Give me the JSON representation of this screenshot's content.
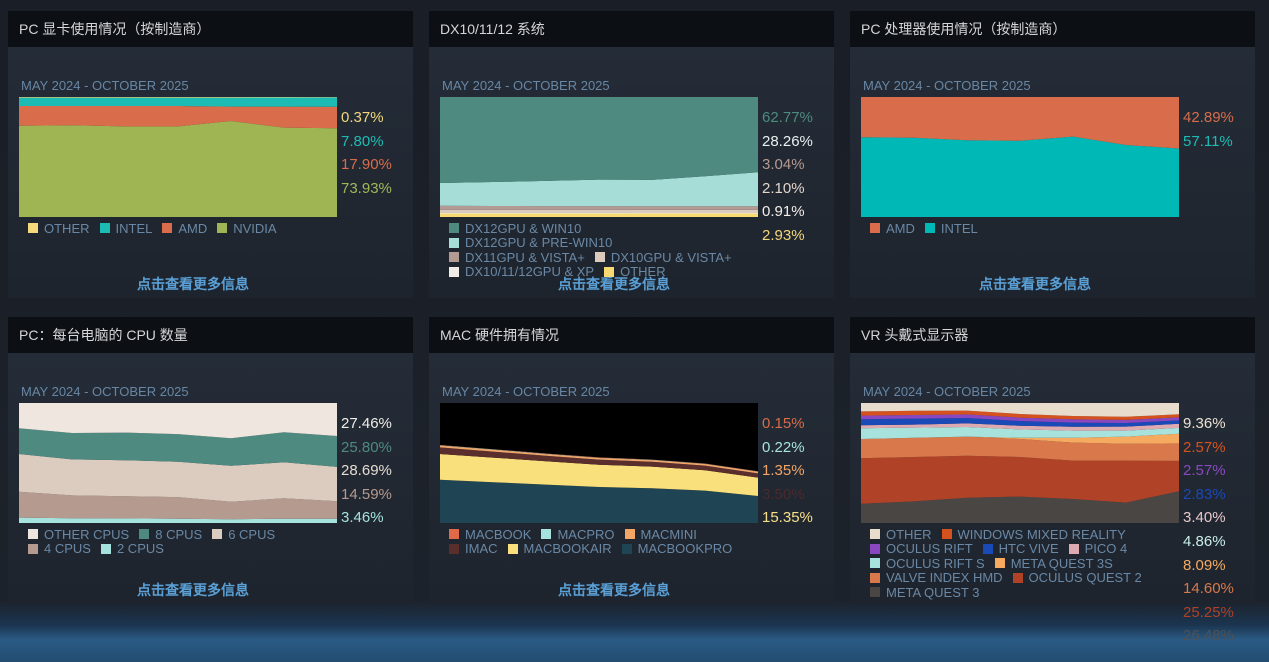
{
  "link_label": "点击查看更多信息",
  "panels": [
    {
      "title": "PC 显卡使用情况（按制造商）",
      "date_range": "MAY 2024 - OCTOBER 2025",
      "labels": [
        {
          "text": "0.37%",
          "color": "#f3d77c"
        },
        {
          "text": "7.80%",
          "color": "#1cbcb5"
        },
        {
          "text": "17.90%",
          "color": "#d96c4a"
        },
        {
          "text": "73.93%",
          "color": "#a2b758"
        }
      ]
    },
    {
      "title": "DX10/11/12 系统",
      "date_range": "MAY 2024 - OCTOBER 2025",
      "labels": [
        {
          "text": "62.77%",
          "color": "#4e8a80"
        },
        {
          "text": "28.26%",
          "color": "#e6f2f0"
        },
        {
          "text": "3.04%",
          "color": "#b59a90"
        },
        {
          "text": "2.10%",
          "color": "#e2d6cc"
        },
        {
          "text": "0.91%",
          "color": "#f2eeea"
        },
        {
          "text": "2.93%",
          "color": "#f3d77c"
        }
      ]
    },
    {
      "title": "PC 处理器使用情况（按制造商）",
      "date_range": "MAY 2024 - OCTOBER 2025",
      "labels": [
        {
          "text": "42.89%",
          "color": "#d96c4a"
        },
        {
          "text": "57.11%",
          "color": "#1cbcb5"
        }
      ]
    },
    {
      "title": "PC：每台电脑的 CPU 数量",
      "date_range": "MAY 2024 - OCTOBER 2025",
      "labels": [
        {
          "text": "27.46%",
          "color": "#f2ede8"
        },
        {
          "text": "25.80%",
          "color": "#4e8a80"
        },
        {
          "text": "28.69%",
          "color": "#e6dcd2"
        },
        {
          "text": "14.59%",
          "color": "#b59a90"
        },
        {
          "text": "3.46%",
          "color": "#a6e3de"
        }
      ]
    },
    {
      "title": "MAC 硬件拥有情况",
      "date_range": "MAY 2024 - OCTOBER 2025",
      "labels": [
        {
          "text": "0.15%",
          "color": "#d96c4a"
        },
        {
          "text": "0.22%",
          "color": "#a6e3de"
        },
        {
          "text": "1.35%",
          "color": "#f3a566"
        },
        {
          "text": "3.50%",
          "color": "#4a2a2c"
        },
        {
          "text": "15.35%",
          "color": "#f6e08a"
        }
      ]
    },
    {
      "title": "VR 头戴式显示器",
      "date_range": "MAY 2024 - OCTOBER 2025",
      "labels": [
        {
          "text": "9.36%",
          "color": "#ece2d4"
        },
        {
          "text": "2.57%",
          "color": "#d5521e"
        },
        {
          "text": "2.57%",
          "color": "#8a48c0"
        },
        {
          "text": "2.83%",
          "color": "#1a49b8"
        },
        {
          "text": "3.40%",
          "color": "#e8c8cc"
        },
        {
          "text": "4.86%",
          "color": "#c8eeea"
        },
        {
          "text": "8.09%",
          "color": "#f5aa60"
        },
        {
          "text": "14.60%",
          "color": "#d9784a"
        },
        {
          "text": "25.25%",
          "color": "#b04228"
        },
        {
          "text": "26.48%",
          "color": "#4f5154"
        }
      ]
    }
  ],
  "chart_data": [
    {
      "type": "area",
      "stacked": true,
      "x": [
        "2024-05",
        "2024-08",
        "2024-11",
        "2025-01",
        "2025-02",
        "2025-04",
        "2025-10"
      ],
      "ylim": [
        0,
        100
      ],
      "legend": [
        "OTHER",
        "INTEL",
        "AMD",
        "NVIDIA"
      ],
      "series": [
        {
          "name": "NVIDIA",
          "color": "#9fb554",
          "values": [
            76,
            76.5,
            75.5,
            75.5,
            80,
            74.5,
            73.93
          ]
        },
        {
          "name": "AMD",
          "color": "#d96c4a",
          "values": [
            16.5,
            16,
            17,
            17,
            12,
            17.5,
            17.9
          ]
        },
        {
          "name": "INTEL",
          "color": "#1cbcb5",
          "values": [
            7,
            7,
            7,
            7,
            7.5,
            7.6,
            7.8
          ]
        },
        {
          "name": "OTHER",
          "color": "#f6d97a",
          "values": [
            0.5,
            0.5,
            0.5,
            0.5,
            0.5,
            0.4,
            0.37
          ]
        }
      ]
    },
    {
      "type": "area",
      "stacked": true,
      "x": [
        "2024-05",
        "2024-08",
        "2024-11",
        "2025-01",
        "2025-02",
        "2025-04",
        "2025-10"
      ],
      "ylim": [
        0,
        100
      ],
      "legend": [
        "DX12GPU & WIN10",
        "DX12GPU & PRE-WIN10",
        "DX11GPU & VISTA+",
        "DX10GPU & VISTA+",
        "DX10/11/12GPU & XP",
        "OTHER"
      ],
      "series": [
        {
          "name": "OTHER",
          "color": "#f7da72",
          "values": [
            2.9,
            2.9,
            2.9,
            2.9,
            2.9,
            2.9,
            2.93
          ]
        },
        {
          "name": "DX10/11/12GPU & XP",
          "color": "#f0ebe7",
          "values": [
            1,
            1,
            1,
            1,
            0.9,
            0.9,
            0.91
          ]
        },
        {
          "name": "DX10GPU & VISTA+",
          "color": "#dccbbd",
          "values": [
            2.2,
            2.2,
            2.1,
            2.1,
            2.1,
            2.1,
            2.1
          ]
        },
        {
          "name": "DX11GPU & VISTA+",
          "color": "#b39a93",
          "values": [
            3.2,
            3.1,
            3.1,
            3.1,
            3,
            3,
            3.04
          ]
        },
        {
          "name": "DX12GPU & PRE-WIN10",
          "color": "#a6ddd6",
          "values": [
            19,
            20,
            21,
            22,
            22,
            25,
            28.26
          ]
        },
        {
          "name": "DX12GPU & WIN10",
          "color": "#4e8a80",
          "values": [
            71.7,
            70.8,
            69.9,
            68.8,
            69.1,
            66.1,
            62.77
          ]
        }
      ]
    },
    {
      "type": "area",
      "stacked": true,
      "x": [
        "2024-05",
        "2024-08",
        "2024-11",
        "2025-01",
        "2025-02",
        "2025-04",
        "2025-10"
      ],
      "ylim": [
        0,
        100
      ],
      "legend": [
        "AMD",
        "INTEL"
      ],
      "series": [
        {
          "name": "INTEL",
          "color": "#00b9b6",
          "values": [
            66.5,
            66,
            64,
            63.5,
            67,
            60,
            57.11
          ]
        },
        {
          "name": "AMD",
          "color": "#d96c4a",
          "values": [
            33.5,
            34,
            36,
            36.5,
            33,
            40,
            42.89
          ]
        }
      ]
    },
    {
      "type": "area",
      "stacked": true,
      "x": [
        "2024-05",
        "2024-08",
        "2024-11",
        "2025-01",
        "2025-02",
        "2025-04",
        "2025-10"
      ],
      "ylim": [
        0,
        100
      ],
      "legend": [
        "OTHER CPUS",
        "8 CPUS",
        "6 CPUS",
        "4 CPUS",
        "2 CPUS"
      ],
      "series": [
        {
          "name": "2 CPUS",
          "color": "#a6e3de",
          "values": [
            4.5,
            4,
            3.8,
            3.6,
            3.2,
            3.6,
            3.46
          ]
        },
        {
          "name": "4 CPUS",
          "color": "#b59a90",
          "values": [
            21.5,
            19,
            18.5,
            18,
            14.5,
            17,
            14.59
          ]
        },
        {
          "name": "6 CPUS",
          "color": "#dccbbf",
          "values": [
            31.5,
            30,
            30,
            29.5,
            30,
            30,
            28.69
          ]
        },
        {
          "name": "8 CPUS",
          "color": "#4e8a80",
          "values": [
            21.5,
            22,
            23,
            23,
            23,
            25,
            25.8
          ]
        },
        {
          "name": "OTHER CPUS",
          "color": "#efe6e0",
          "values": [
            21,
            25,
            24.7,
            25.9,
            29.3,
            24.4,
            27.46
          ]
        }
      ]
    },
    {
      "type": "area",
      "stacked": true,
      "x": [
        "2024-05",
        "2024-08",
        "2024-11",
        "2025-01",
        "2025-02",
        "2025-04",
        "2025-10"
      ],
      "ylim": [
        0,
        100
      ],
      "background": "#000000",
      "legend": [
        "MACBOOK",
        "MACPRO",
        "MACMINI",
        "IMAC",
        "MACBOOKAIR",
        "MACBOOKPRO"
      ],
      "series": [
        {
          "name": "MACBOOKPRO",
          "color": "#1f4453",
          "values": [
            36,
            34,
            32,
            30,
            29,
            27,
            22.5
          ]
        },
        {
          "name": "MACBOOKAIR",
          "color": "#f9e07c",
          "values": [
            21.5,
            20.5,
            19.5,
            18.5,
            18,
            17,
            15.35
          ]
        },
        {
          "name": "IMAC",
          "color": "#5a2e2c",
          "values": [
            5.5,
            5,
            4.5,
            4.3,
            4,
            3.8,
            3.5
          ]
        },
        {
          "name": "MACMINI",
          "color": "#f3a566",
          "values": [
            1.5,
            1.5,
            1.4,
            1.4,
            1.4,
            1.4,
            1.35
          ]
        },
        {
          "name": "MACPRO",
          "color": "#a6e3de",
          "values": [
            0.3,
            0.3,
            0.3,
            0.25,
            0.25,
            0.22,
            0.22
          ]
        },
        {
          "name": "MACBOOK",
          "color": "#e0694a",
          "values": [
            0.2,
            0.2,
            0.2,
            0.2,
            0.15,
            0.15,
            0.15
          ]
        }
      ]
    },
    {
      "type": "area",
      "stacked": true,
      "x": [
        "2024-05",
        "2024-08",
        "2024-11",
        "2025-01",
        "2025-02",
        "2025-04",
        "2025-10"
      ],
      "ylim": [
        0,
        100
      ],
      "legend": [
        "OTHER",
        "WINDOWS MIXED REALITY",
        "OCULUS RIFT",
        "HTC VIVE",
        "PICO 4",
        "OCULUS RIFT S",
        "META QUEST 3S",
        "VALVE INDEX HMD",
        "OCULUS QUEST 2",
        "META QUEST 3"
      ],
      "series": [
        {
          "name": "META QUEST 3",
          "color": "#4a4644",
          "values": [
            16,
            18,
            21,
            22,
            20,
            17,
            26.48
          ]
        },
        {
          "name": "OCULUS QUEST 2",
          "color": "#b04228",
          "values": [
            38,
            37,
            35,
            33,
            32,
            35,
            25.25
          ]
        },
        {
          "name": "VALVE INDEX HMD",
          "color": "#d9784a",
          "values": [
            16,
            16,
            16,
            15,
            15,
            14,
            14.6
          ]
        },
        {
          "name": "META QUEST 3S",
          "color": "#f5aa60",
          "values": [
            0,
            0,
            0,
            1,
            4,
            6,
            8.09
          ]
        },
        {
          "name": "OCULUS RIFT S",
          "color": "#a8e2dc",
          "values": [
            9,
            8.5,
            8,
            7,
            6,
            5,
            4.86
          ]
        },
        {
          "name": "PICO 4",
          "color": "#dcaab0",
          "values": [
            2.5,
            2.5,
            3,
            3,
            3.2,
            3.3,
            3.4
          ]
        },
        {
          "name": "HTC VIVE",
          "color": "#1a49b8",
          "values": [
            5,
            5,
            4.5,
            4,
            3.5,
            3,
            2.83
          ]
        },
        {
          "name": "OCULUS RIFT",
          "color": "#8a48c0",
          "values": [
            3,
            3,
            3,
            2.8,
            2.7,
            2.6,
            2.57
          ]
        },
        {
          "name": "WINDOWS MIXED REALITY",
          "color": "#d5521e",
          "values": [
            3.5,
            3.5,
            3.2,
            3,
            2.8,
            2.6,
            2.57
          ]
        },
        {
          "name": "OTHER",
          "color": "#e8dccd",
          "values": [
            7,
            6.5,
            6.3,
            9.2,
            10.8,
            11.5,
            9.36
          ]
        }
      ]
    }
  ]
}
